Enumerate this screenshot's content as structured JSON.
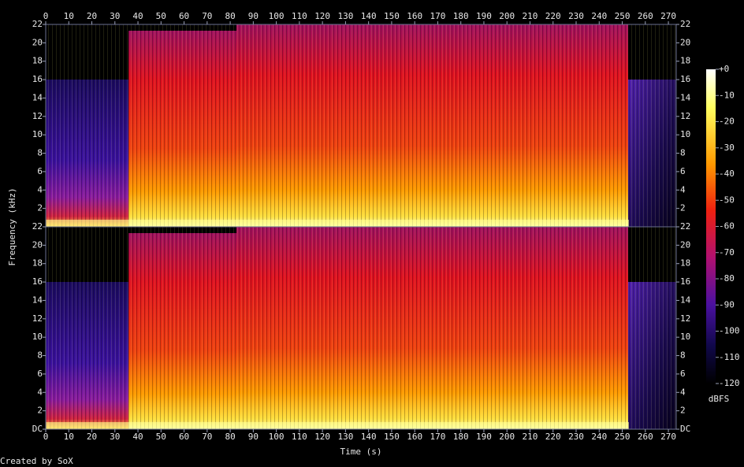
{
  "chart_data": {
    "type": "spectrogram",
    "xlabel": "Time (s)",
    "ylabel": "Frequency (kHz)",
    "xlim": [
      0,
      273.4
    ],
    "xticks": [
      0,
      10,
      20,
      30,
      40,
      50,
      60,
      70,
      80,
      90,
      100,
      110,
      120,
      130,
      140,
      150,
      160,
      170,
      180,
      190,
      200,
      210,
      220,
      230,
      240,
      250,
      260,
      270
    ],
    "panels": [
      {
        "ylim": [
          0,
          22
        ],
        "yticks": [
          2,
          4,
          6,
          8,
          10,
          12,
          14,
          16,
          18,
          20,
          22
        ]
      },
      {
        "ylim": [
          0,
          22
        ],
        "yticks": [
          {
            "value": 0,
            "label": "DC"
          },
          2,
          4,
          6,
          8,
          10,
          12,
          14,
          16,
          18,
          20,
          22
        ]
      }
    ],
    "colorbar": {
      "label": "dBFS",
      "lim": [
        -120,
        0
      ],
      "ticks": [
        {
          "value": 0,
          "label": "+0"
        },
        -10,
        -20,
        -30,
        -40,
        -50,
        -60,
        -70,
        -80,
        -90,
        -100,
        -110,
        -120
      ]
    },
    "footer": "Created by SoX"
  }
}
